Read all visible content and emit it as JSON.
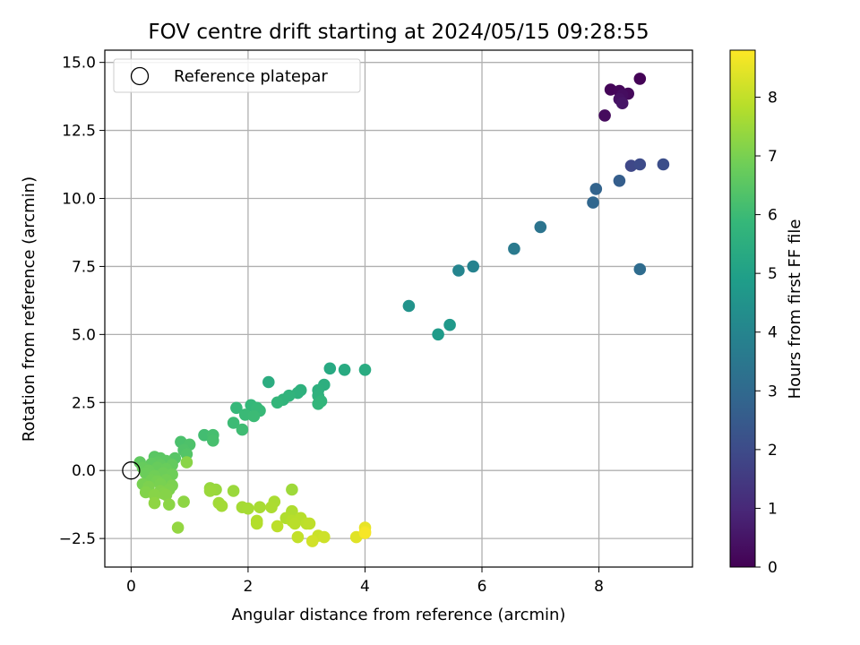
{
  "chart_data": {
    "type": "scatter",
    "title": "FOV centre drift starting at 2024/05/15 09:28:55",
    "xlabel": "Angular distance from reference (arcmin)",
    "ylabel": "Rotation from reference (arcmin)",
    "xlim": [
      -0.45,
      9.6
    ],
    "ylim": [
      -3.55,
      15.45
    ],
    "xticks": [
      0,
      2,
      4,
      6,
      8
    ],
    "xtick_labels": [
      "0",
      "2",
      "4",
      "6",
      "8"
    ],
    "yticks": [
      -2.5,
      0.0,
      2.5,
      5.0,
      7.5,
      10.0,
      12.5,
      15.0
    ],
    "ytick_labels": [
      "−2.5",
      "0.0",
      "2.5",
      "5.0",
      "7.5",
      "10.0",
      "12.5",
      "15.0"
    ],
    "grid": true,
    "legend": {
      "placement": "upper left",
      "entries": [
        "Reference platepar"
      ]
    },
    "reference_point": {
      "x": 0,
      "y": 0
    },
    "colorbar": {
      "label": "Hours from first FF file",
      "colormap": "viridis",
      "range": [
        0,
        8.8
      ],
      "ticks": [
        0,
        1,
        2,
        3,
        4,
        5,
        6,
        7,
        8
      ],
      "tick_labels": [
        "0",
        "1",
        "2",
        "3",
        "4",
        "5",
        "6",
        "7",
        "8"
      ]
    },
    "points": [
      [
        8.7,
        14.4,
        0.05
      ],
      [
        8.2,
        14.0,
        0.1
      ],
      [
        8.35,
        13.95,
        0.15
      ],
      [
        8.5,
        13.85,
        0.2
      ],
      [
        8.1,
        13.05,
        0.25
      ],
      [
        8.4,
        13.8,
        0.3
      ],
      [
        8.35,
        13.65,
        0.4
      ],
      [
        8.4,
        13.5,
        0.5
      ],
      [
        8.55,
        11.2,
        1.9
      ],
      [
        8.7,
        11.25,
        2.0
      ],
      [
        9.1,
        11.25,
        2.1
      ],
      [
        8.35,
        10.65,
        2.6
      ],
      [
        7.95,
        10.35,
        2.8
      ],
      [
        7.9,
        9.85,
        2.9
      ],
      [
        8.7,
        7.4,
        3.1
      ],
      [
        7.0,
        8.95,
        3.4
      ],
      [
        6.55,
        8.15,
        3.6
      ],
      [
        5.85,
        7.5,
        3.9
      ],
      [
        5.6,
        7.35,
        4.0
      ],
      [
        4.75,
        6.05,
        4.5
      ],
      [
        5.45,
        5.35,
        4.7
      ],
      [
        5.25,
        5.0,
        4.8
      ],
      [
        3.4,
        3.75,
        5.3
      ],
      [
        3.65,
        3.7,
        5.35
      ],
      [
        4.0,
        3.7,
        5.4
      ],
      [
        2.35,
        3.25,
        5.45
      ],
      [
        3.3,
        3.15,
        5.5
      ],
      [
        3.2,
        2.95,
        5.55
      ],
      [
        2.9,
        2.95,
        5.6
      ],
      [
        2.85,
        2.85,
        5.62
      ],
      [
        3.2,
        2.75,
        5.65
      ],
      [
        2.7,
        2.75,
        5.7
      ],
      [
        2.6,
        2.6,
        5.72
      ],
      [
        3.25,
        2.55,
        5.75
      ],
      [
        3.2,
        2.45,
        5.78
      ],
      [
        2.5,
        2.5,
        5.8
      ],
      [
        2.05,
        2.4,
        5.85
      ],
      [
        1.8,
        2.3,
        5.88
      ],
      [
        2.15,
        2.3,
        5.9
      ],
      [
        2.2,
        2.2,
        5.92
      ],
      [
        1.95,
        2.05,
        5.95
      ],
      [
        2.1,
        2.0,
        5.98
      ],
      [
        1.75,
        1.75,
        6.0
      ],
      [
        1.9,
        1.5,
        6.05
      ],
      [
        1.25,
        1.3,
        6.1
      ],
      [
        1.4,
        1.3,
        6.15
      ],
      [
        1.4,
        1.1,
        6.2
      ],
      [
        0.85,
        1.05,
        6.25
      ],
      [
        1.0,
        0.95,
        6.3
      ],
      [
        0.9,
        0.75,
        6.35
      ],
      [
        0.95,
        0.6,
        6.4
      ],
      [
        0.75,
        0.45,
        6.45
      ],
      [
        0.4,
        0.5,
        6.5
      ],
      [
        0.5,
        0.45,
        6.52
      ],
      [
        0.6,
        0.35,
        6.55
      ],
      [
        0.45,
        0.3,
        6.57
      ],
      [
        0.15,
        0.3,
        6.6
      ],
      [
        0.35,
        0.25,
        6.62
      ],
      [
        0.5,
        0.2,
        6.65
      ],
      [
        0.7,
        0.2,
        6.67
      ],
      [
        0.2,
        0.1,
        6.7
      ],
      [
        0.45,
        0.1,
        6.72
      ],
      [
        0.6,
        0.05,
        6.75
      ],
      [
        0.3,
        0.0,
        6.77
      ],
      [
        0.25,
        -0.1,
        6.8
      ],
      [
        0.55,
        -0.1,
        6.82
      ],
      [
        0.7,
        -0.15,
        6.85
      ],
      [
        0.4,
        -0.2,
        6.87
      ],
      [
        0.35,
        -0.35,
        6.9
      ],
      [
        0.6,
        -0.35,
        6.92
      ],
      [
        0.45,
        -0.4,
        6.95
      ],
      [
        0.2,
        -0.5,
        6.97
      ],
      [
        0.5,
        -0.5,
        7.0
      ],
      [
        0.7,
        -0.55,
        7.02
      ],
      [
        0.3,
        -0.6,
        7.05
      ],
      [
        0.65,
        -0.7,
        7.07
      ],
      [
        0.5,
        -0.75,
        7.1
      ],
      [
        0.25,
        -0.8,
        7.12
      ],
      [
        0.55,
        -0.85,
        7.15
      ],
      [
        0.6,
        -0.9,
        7.17
      ],
      [
        0.4,
        -0.9,
        7.2
      ],
      [
        0.95,
        0.3,
        7.22
      ],
      [
        0.65,
        -1.25,
        7.25
      ],
      [
        0.9,
        -1.15,
        7.27
      ],
      [
        0.4,
        -1.2,
        7.3
      ],
      [
        0.8,
        -2.1,
        7.35
      ],
      [
        1.35,
        -0.65,
        7.4
      ],
      [
        1.45,
        -0.7,
        7.42
      ],
      [
        1.75,
        -0.75,
        7.45
      ],
      [
        1.35,
        -0.75,
        7.47
      ],
      [
        2.75,
        -0.7,
        7.5
      ],
      [
        1.5,
        -1.2,
        7.55
      ],
      [
        1.55,
        -1.3,
        7.57
      ],
      [
        1.9,
        -1.35,
        7.6
      ],
      [
        2.0,
        -1.4,
        7.62
      ],
      [
        2.2,
        -1.35,
        7.65
      ],
      [
        2.45,
        -1.15,
        7.67
      ],
      [
        2.4,
        -1.35,
        7.7
      ],
      [
        2.75,
        -1.5,
        7.72
      ],
      [
        2.65,
        -1.75,
        7.75
      ],
      [
        2.15,
        -1.85,
        7.77
      ],
      [
        2.15,
        -1.95,
        7.8
      ],
      [
        2.75,
        -1.85,
        7.82
      ],
      [
        2.9,
        -1.75,
        7.85
      ],
      [
        2.8,
        -1.95,
        7.87
      ],
      [
        3.0,
        -1.95,
        7.9
      ],
      [
        2.5,
        -2.05,
        7.92
      ],
      [
        3.05,
        -1.95,
        7.95
      ],
      [
        2.85,
        -2.45,
        8.0
      ],
      [
        3.2,
        -2.4,
        8.1
      ],
      [
        3.3,
        -2.45,
        8.15
      ],
      [
        3.1,
        -2.6,
        8.2
      ],
      [
        3.85,
        -2.45,
        8.4
      ],
      [
        4.0,
        -2.1,
        8.5
      ],
      [
        4.0,
        -2.25,
        8.6
      ],
      [
        4.0,
        -2.3,
        8.7
      ]
    ]
  }
}
